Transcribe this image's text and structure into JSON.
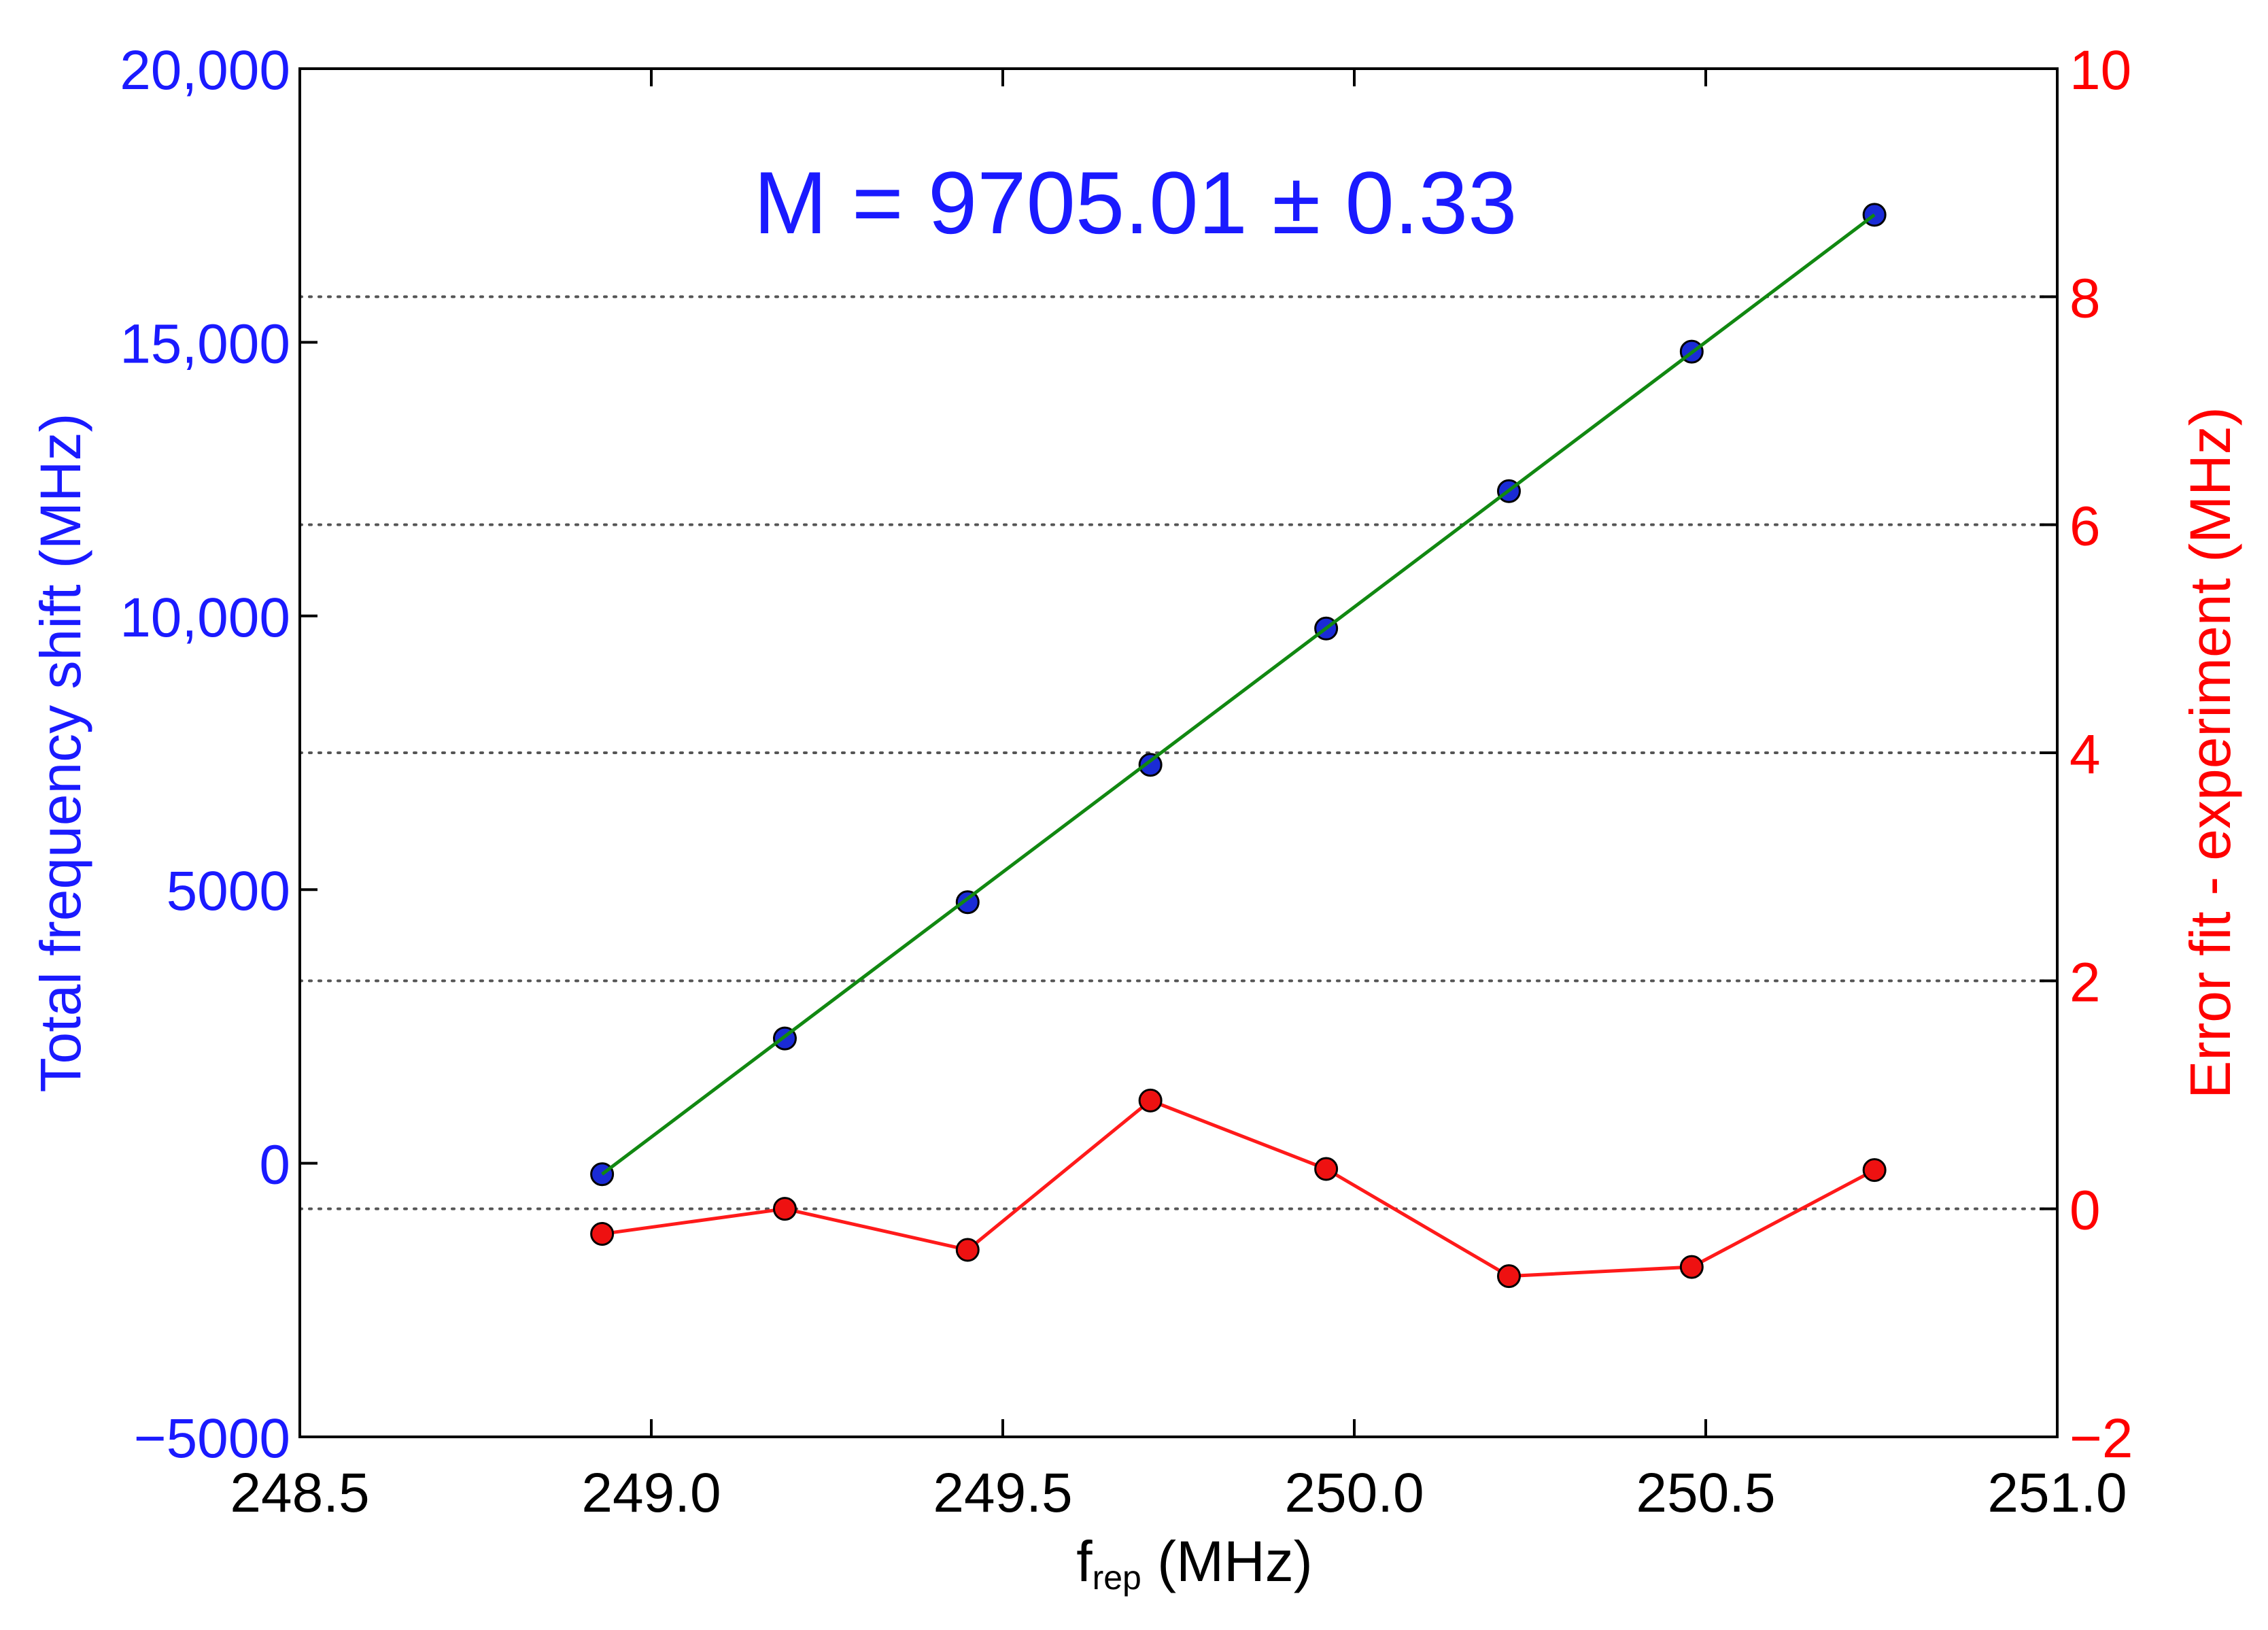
{
  "chart_data": {
    "type": "line",
    "title": "",
    "annotation": "M = 9705.01 ± 0.33",
    "xlabel": "f",
    "xlabel_subscript": "rep",
    "xlabel_unit": " (MHz)",
    "ylabel_left": "Total frequency shift (MHz)",
    "ylabel_right": "Error fit - experiment (MHz)",
    "xlim": [
      248.5,
      251.0
    ],
    "ylim_left": [
      -5000,
      20000
    ],
    "ylim_right": [
      -2,
      10
    ],
    "x_ticks": [
      "248.5",
      "249.0",
      "249.5",
      "250.0",
      "250.5",
      "251.0"
    ],
    "x_tick_values": [
      248.5,
      249.0,
      249.5,
      250.0,
      250.5,
      251.0
    ],
    "y_left_ticks": [
      "−5000",
      "0",
      "5000",
      "10,000",
      "15,000",
      "20,000"
    ],
    "y_left_tick_values": [
      -5000,
      0,
      5000,
      10000,
      15000,
      20000
    ],
    "y_right_ticks": [
      "−2",
      "0",
      "2",
      "4",
      "6",
      "8",
      "10"
    ],
    "y_right_tick_values": [
      -2,
      0,
      2,
      4,
      6,
      8,
      10
    ],
    "grid": "horizontal dotted lines at right-axis ticks",
    "colors": {
      "left_axis": "#1a1aff",
      "right_axis": "#ff0000",
      "fit_line": "#118811",
      "measured_marker": "#1a2bd6",
      "error_line": "#ff1a1a",
      "error_marker": "#ee1111",
      "grid": "#555555"
    },
    "series": [
      {
        "axis": "left",
        "style": "markers",
        "x": [
          248.93,
          249.19,
          249.45,
          249.71,
          249.96,
          250.22,
          250.48,
          250.74
        ],
        "y": [
          -200,
          2280,
          4770,
          7280,
          9770,
          12280,
          14830,
          17330
        ]
      },
      {
        "axis": "left",
        "style": "line",
        "x": [
          248.93,
          250.74
        ],
        "y": [
          -200,
          17330
        ]
      },
      {
        "axis": "right",
        "style": "line+markers",
        "x": [
          248.93,
          249.19,
          249.45,
          249.71,
          249.96,
          250.22,
          250.48,
          250.74
        ],
        "y": [
          -0.22,
          0.0,
          -0.36,
          0.95,
          0.35,
          -0.59,
          -0.51,
          0.34
        ]
      }
    ]
  }
}
